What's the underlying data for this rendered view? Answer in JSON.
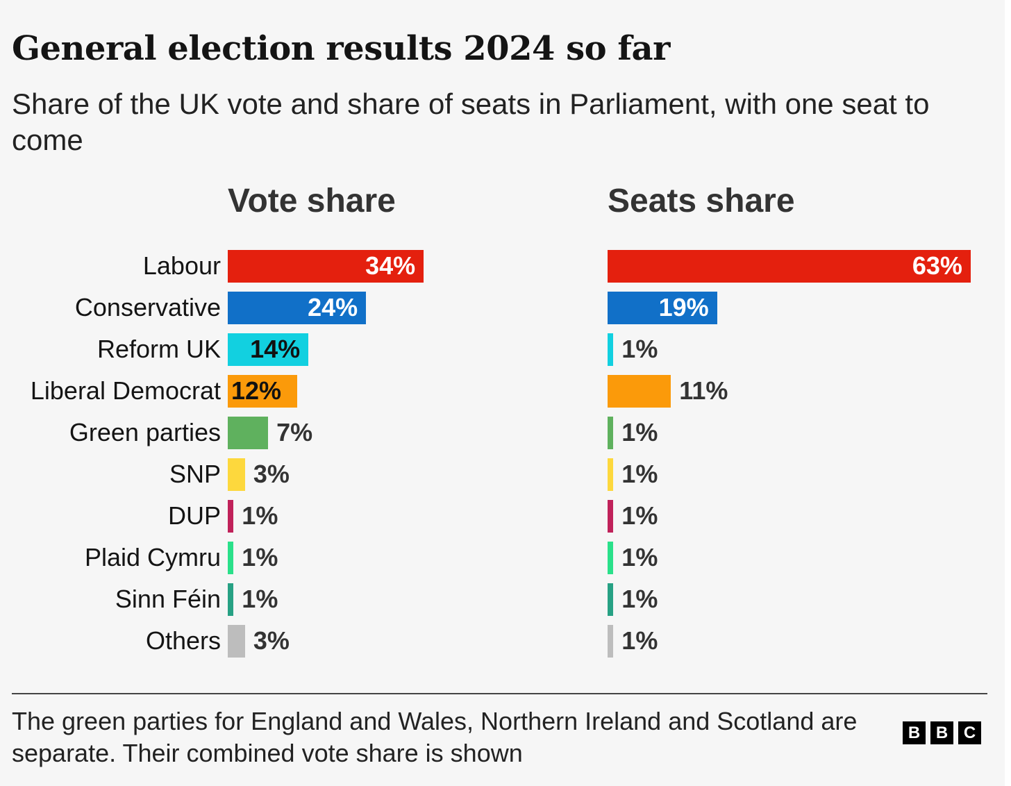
{
  "title": "General election results 2024 so far",
  "subtitle": "Share of the UK vote and share of seats in Parliament, with one seat to come",
  "footnote": "The green parties for England and Wales, Northern Ireland and Scotland are separate. Their combined vote share is shown",
  "logo": "BBC",
  "chart_data": {
    "type": "bar",
    "orientation": "horizontal",
    "categories": [
      "Labour",
      "Conservative",
      "Reform UK",
      "Liberal Democrat",
      "Green parties",
      "SNP",
      "DUP",
      "Plaid Cymru",
      "Sinn Féin",
      "Others"
    ],
    "colors": [
      "#e4200e",
      "#1170c8",
      "#12d0e0",
      "#fb9a0a",
      "#5fb15e",
      "#fdd83d",
      "#c0225a",
      "#2ae08a",
      "#27a184",
      "#bdbdbd"
    ],
    "series": [
      {
        "name": "Vote share",
        "values": [
          34,
          24,
          14,
          12,
          7,
          3,
          1,
          1,
          1,
          3
        ]
      },
      {
        "name": "Seats share",
        "values": [
          63,
          19,
          1,
          11,
          1,
          1,
          1,
          1,
          1,
          1
        ]
      }
    ],
    "unit": "%",
    "xlim": [
      0,
      63
    ]
  }
}
